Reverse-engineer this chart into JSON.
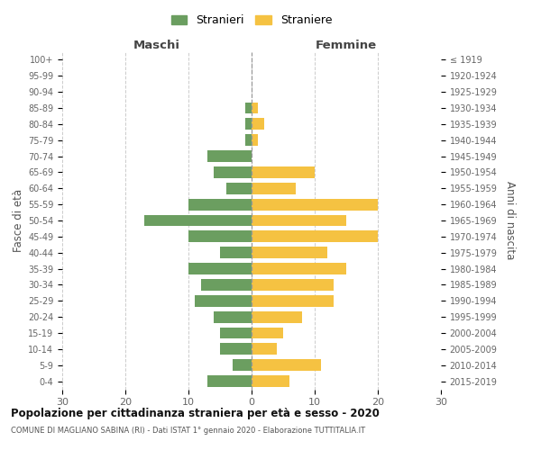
{
  "age_groups": [
    "100+",
    "95-99",
    "90-94",
    "85-89",
    "80-84",
    "75-79",
    "70-74",
    "65-69",
    "60-64",
    "55-59",
    "50-54",
    "45-49",
    "40-44",
    "35-39",
    "30-34",
    "25-29",
    "20-24",
    "15-19",
    "10-14",
    "5-9",
    "0-4"
  ],
  "birth_years": [
    "≤ 1919",
    "1920-1924",
    "1925-1929",
    "1930-1934",
    "1935-1939",
    "1940-1944",
    "1945-1949",
    "1950-1954",
    "1955-1959",
    "1960-1964",
    "1965-1969",
    "1970-1974",
    "1975-1979",
    "1980-1984",
    "1985-1989",
    "1990-1994",
    "1995-1999",
    "2000-2004",
    "2005-2009",
    "2010-2014",
    "2015-2019"
  ],
  "maschi": [
    0,
    0,
    0,
    1,
    1,
    1,
    7,
    6,
    4,
    10,
    17,
    10,
    5,
    10,
    8,
    9,
    6,
    5,
    5,
    3,
    7
  ],
  "femmine": [
    0,
    0,
    0,
    1,
    2,
    1,
    0,
    10,
    7,
    20,
    15,
    20,
    12,
    15,
    13,
    13,
    8,
    5,
    4,
    11,
    6
  ],
  "color_maschi": "#6b9e60",
  "color_femmine": "#f5c242",
  "title": "Popolazione per cittadinanza straniera per età e sesso - 2020",
  "subtitle": "COMUNE DI MAGLIANO SABINA (RI) - Dati ISTAT 1° gennaio 2020 - Elaborazione TUTTITALIA.IT",
  "xlabel_left": "Maschi",
  "xlabel_right": "Femmine",
  "ylabel_left": "Fasce di età",
  "ylabel_right": "Anni di nascita",
  "legend_maschi": "Stranieri",
  "legend_femmine": "Straniere",
  "xlim": 30,
  "xticks": [
    -30,
    -20,
    -10,
    0,
    10,
    20,
    30
  ],
  "xtick_labels": [
    "30",
    "20",
    "10",
    "0",
    "10",
    "20",
    "30"
  ],
  "background_color": "#ffffff",
  "grid_color": "#cccccc",
  "bar_height": 0.72
}
